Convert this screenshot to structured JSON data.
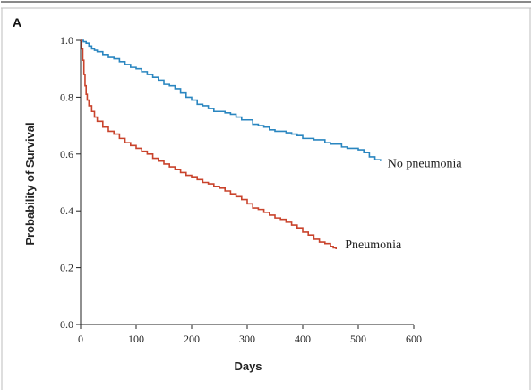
{
  "panel_label": "A",
  "chart_data": {
    "type": "line",
    "title": "",
    "xlabel": "Days",
    "ylabel": "Probability of Survival",
    "xlim": [
      0,
      600
    ],
    "ylim": [
      0.0,
      1.0
    ],
    "x_ticks": [
      0,
      100,
      200,
      300,
      400,
      500,
      600
    ],
    "y_ticks": [
      "0.0",
      "0.2",
      "0.4",
      "0.6",
      "0.8",
      "1.0"
    ],
    "grid": false,
    "legend": "inline labels at end of curves",
    "series": [
      {
        "name": "No pneumonia",
        "color": "#2a86c0",
        "x": [
          0,
          5,
          10,
          15,
          20,
          25,
          30,
          40,
          50,
          60,
          70,
          80,
          90,
          100,
          110,
          120,
          130,
          140,
          150,
          160,
          170,
          180,
          190,
          200,
          210,
          220,
          230,
          240,
          250,
          260,
          270,
          280,
          290,
          300,
          310,
          320,
          330,
          340,
          350,
          360,
          370,
          380,
          390,
          400,
          410,
          420,
          430,
          440,
          450,
          460,
          470,
          480,
          490,
          500,
          510,
          520,
          530,
          540
        ],
        "y": [
          1.0,
          0.995,
          0.99,
          0.98,
          0.97,
          0.965,
          0.96,
          0.95,
          0.94,
          0.935,
          0.925,
          0.915,
          0.905,
          0.9,
          0.89,
          0.88,
          0.87,
          0.86,
          0.845,
          0.84,
          0.83,
          0.815,
          0.8,
          0.79,
          0.775,
          0.77,
          0.76,
          0.75,
          0.75,
          0.745,
          0.74,
          0.73,
          0.72,
          0.72,
          0.705,
          0.7,
          0.695,
          0.685,
          0.68,
          0.68,
          0.675,
          0.67,
          0.665,
          0.655,
          0.655,
          0.65,
          0.65,
          0.64,
          0.635,
          0.635,
          0.625,
          0.62,
          0.62,
          0.615,
          0.605,
          0.59,
          0.58,
          0.575
        ]
      },
      {
        "name": "Pneumonia",
        "color": "#c9432c",
        "x": [
          0,
          2,
          4,
          6,
          8,
          10,
          12,
          15,
          20,
          25,
          30,
          40,
          50,
          60,
          70,
          80,
          90,
          100,
          110,
          120,
          130,
          140,
          150,
          160,
          170,
          180,
          190,
          200,
          210,
          220,
          230,
          240,
          250,
          260,
          270,
          280,
          290,
          300,
          310,
          320,
          330,
          340,
          350,
          360,
          370,
          380,
          390,
          400,
          410,
          420,
          430,
          440,
          450,
          455,
          460
        ],
        "y": [
          1.0,
          0.97,
          0.93,
          0.88,
          0.84,
          0.81,
          0.79,
          0.77,
          0.75,
          0.73,
          0.715,
          0.695,
          0.68,
          0.67,
          0.655,
          0.64,
          0.63,
          0.62,
          0.61,
          0.6,
          0.585,
          0.575,
          0.565,
          0.555,
          0.545,
          0.535,
          0.525,
          0.52,
          0.51,
          0.5,
          0.495,
          0.485,
          0.48,
          0.47,
          0.46,
          0.45,
          0.44,
          0.425,
          0.41,
          0.405,
          0.395,
          0.385,
          0.375,
          0.37,
          0.36,
          0.35,
          0.34,
          0.325,
          0.315,
          0.3,
          0.29,
          0.285,
          0.275,
          0.27,
          0.265
        ]
      }
    ]
  }
}
